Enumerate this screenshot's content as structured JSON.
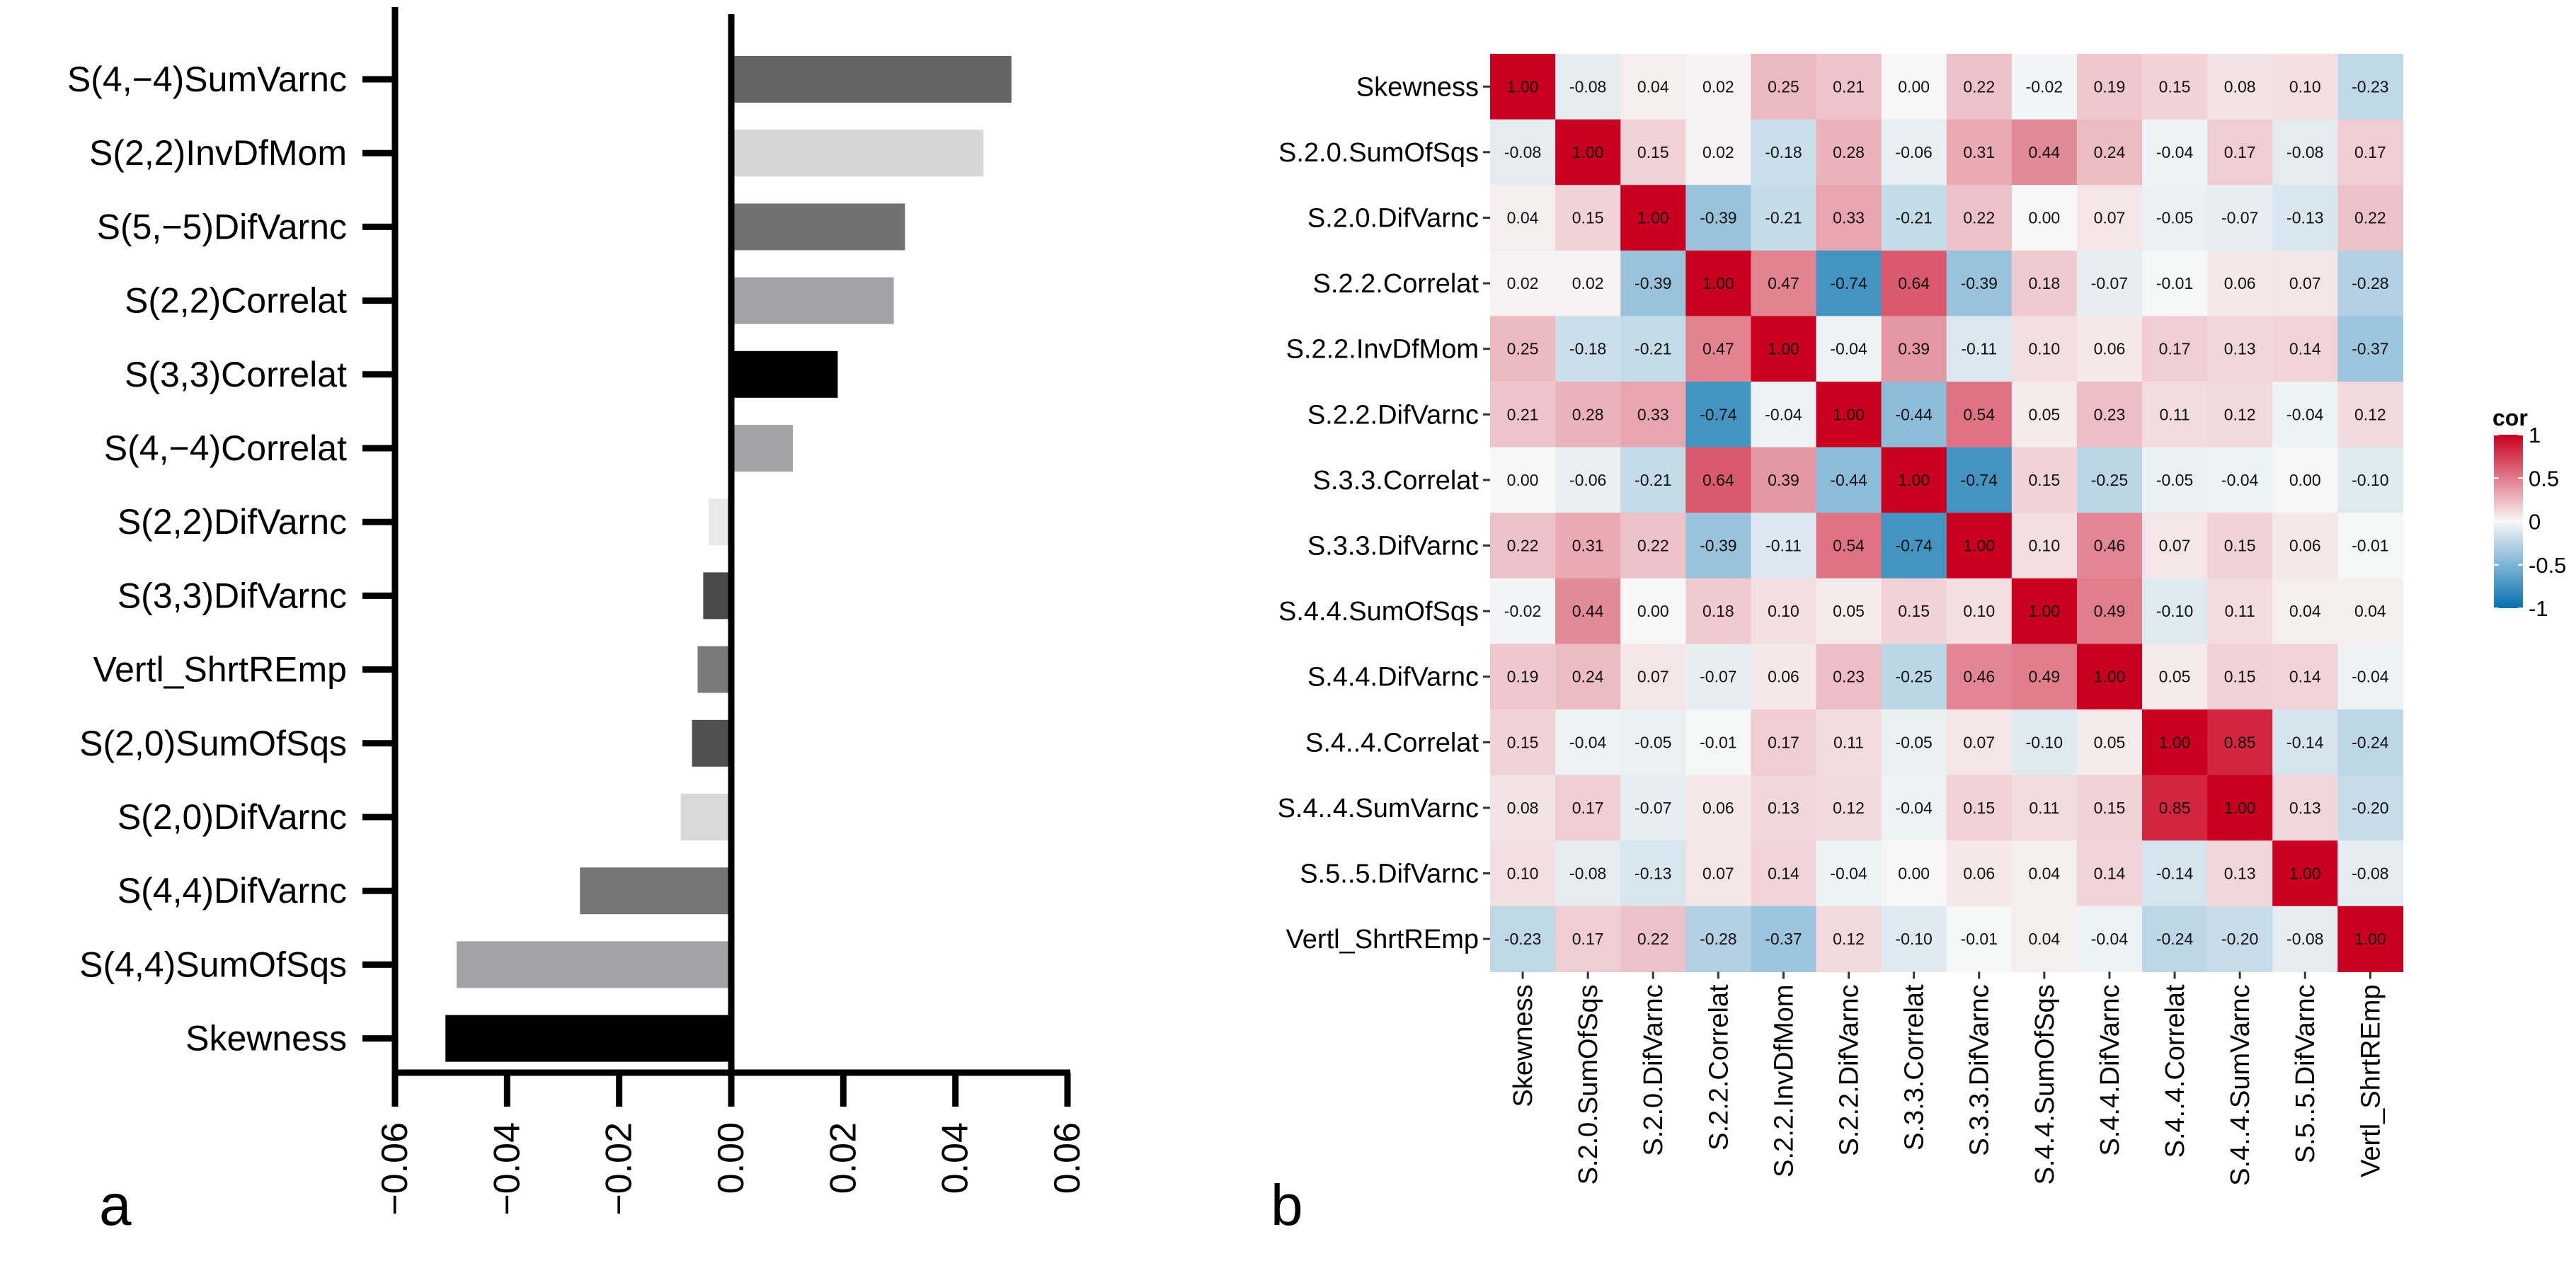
{
  "chart_data": [
    {
      "panel_label": "a",
      "type": "bar",
      "orientation": "horizontal",
      "categories": [
        "S(4,−4)SumVarnc",
        "S(2,2)InvDfMom",
        "S(5,−5)DifVarnc",
        "S(2,2)Correlat",
        "S(3,3)Correlat",
        "S(4,−4)Correlat",
        "S(2,2)DifVarnc",
        "S(3,3)DifVarnc",
        "Vertl_ShrtREmp",
        "S(2,0)SumOfSqs",
        "S(2,0)DifVarnc",
        "S(4,4)DifVarnc",
        "S(4,4)SumOfSqs",
        "Skewness"
      ],
      "values": [
        0.05,
        0.045,
        0.031,
        0.029,
        0.019,
        0.011,
        -0.004,
        -0.005,
        -0.006,
        -0.007,
        -0.009,
        -0.027,
        -0.049,
        -0.051
      ],
      "colors": [
        "#646464",
        "#d6d6d6",
        "#717171",
        "#a3a2a6",
        "#000000",
        "#a3a2a6",
        "#e9e9e9",
        "#4a4a4a",
        "#7a7a7a",
        "#505050",
        "#d8d8d8",
        "#757575",
        "#a3a2a6",
        "#000000"
      ],
      "xlim": [
        -0.06,
        0.06
      ],
      "xticks": [
        -0.06,
        -0.04,
        -0.02,
        0.0,
        0.02,
        0.04,
        0.06
      ],
      "xtick_labels": [
        "−0.06",
        "−0.04",
        "−0.02",
        "0.00",
        "0.02",
        "0.04",
        "0.06"
      ],
      "title": "",
      "xlabel": "",
      "ylabel": ""
    },
    {
      "panel_label": "b",
      "type": "heatmap",
      "variables": [
        "Skewness",
        "S.2.0.SumOfSqs",
        "S.2.0.DifVarnc",
        "S.2.2.Correlat",
        "S.2.2.InvDfMom",
        "S.2.2.DifVarnc",
        "S.3.3.Correlat",
        "S.3.3.DifVarnc",
        "S.4.4.SumOfSqs",
        "S.4.4.DifVarnc",
        "S.4..4.Correlat",
        "S.4..4.SumVarnc",
        "S.5..5.DifVarnc",
        "Vertl_ShrtREmp"
      ],
      "matrix": [
        [
          1.0,
          -0.08,
          0.04,
          0.02,
          0.25,
          0.21,
          -0.0,
          0.22,
          -0.02,
          0.19,
          0.15,
          0.08,
          0.1,
          -0.23
        ],
        [
          -0.08,
          1.0,
          0.15,
          0.02,
          -0.18,
          0.28,
          -0.06,
          0.31,
          0.44,
          0.24,
          -0.04,
          0.17,
          -0.08,
          0.17
        ],
        [
          0.04,
          0.15,
          1.0,
          -0.39,
          -0.21,
          0.33,
          -0.21,
          0.22,
          0.0,
          0.07,
          -0.05,
          -0.07,
          -0.13,
          0.22
        ],
        [
          0.02,
          0.02,
          -0.39,
          1.0,
          0.47,
          -0.74,
          0.64,
          -0.39,
          0.18,
          -0.07,
          -0.01,
          0.06,
          0.07,
          -0.28
        ],
        [
          0.25,
          -0.18,
          -0.21,
          0.47,
          1.0,
          -0.04,
          0.39,
          -0.11,
          0.1,
          0.06,
          0.17,
          0.13,
          0.14,
          -0.37
        ],
        [
          0.21,
          0.28,
          0.33,
          -0.74,
          -0.04,
          1.0,
          -0.44,
          0.54,
          0.05,
          0.23,
          0.11,
          0.12,
          -0.04,
          0.12
        ],
        [
          -0.0,
          -0.06,
          -0.21,
          0.64,
          0.39,
          -0.44,
          1.0,
          -0.74,
          0.15,
          -0.25,
          -0.05,
          -0.04,
          0.0,
          -0.1
        ],
        [
          0.22,
          0.31,
          0.22,
          -0.39,
          -0.11,
          0.54,
          -0.74,
          1.0,
          0.1,
          0.46,
          0.07,
          0.15,
          0.06,
          -0.01
        ],
        [
          -0.02,
          0.44,
          0.0,
          0.18,
          0.1,
          0.05,
          0.15,
          0.1,
          1.0,
          0.49,
          -0.1,
          0.11,
          0.04,
          0.04
        ],
        [
          0.19,
          0.24,
          0.07,
          -0.07,
          0.06,
          0.23,
          -0.25,
          0.46,
          0.49,
          1.0,
          0.05,
          0.15,
          0.14,
          -0.04
        ],
        [
          0.15,
          -0.04,
          -0.05,
          -0.01,
          0.17,
          0.11,
          -0.05,
          0.07,
          -0.1,
          0.05,
          1.0,
          0.85,
          -0.14,
          -0.24
        ],
        [
          0.08,
          0.17,
          -0.07,
          0.06,
          0.13,
          0.12,
          -0.04,
          0.15,
          0.11,
          0.15,
          0.85,
          1.0,
          0.13,
          -0.2
        ],
        [
          0.1,
          -0.08,
          -0.13,
          0.07,
          0.14,
          -0.04,
          0.0,
          0.06,
          0.04,
          0.14,
          -0.14,
          0.13,
          1.0,
          -0.08
        ],
        [
          -0.23,
          0.17,
          0.22,
          -0.28,
          -0.37,
          0.12,
          -0.1,
          -0.01,
          0.04,
          -0.04,
          -0.24,
          -0.2,
          -0.08,
          1.0
        ]
      ],
      "color_scale": {
        "min": -1,
        "max": 1,
        "low": "#0571b0",
        "mid": "#f7f7f7",
        "high": "#ca0020"
      },
      "legend": {
        "title": "cor",
        "position": "right",
        "ticks": [
          1,
          0.5,
          0,
          -0.5,
          -1
        ],
        "tick_labels": [
          "1",
          "0.5",
          "0",
          "-0.5",
          "-1"
        ]
      }
    }
  ]
}
